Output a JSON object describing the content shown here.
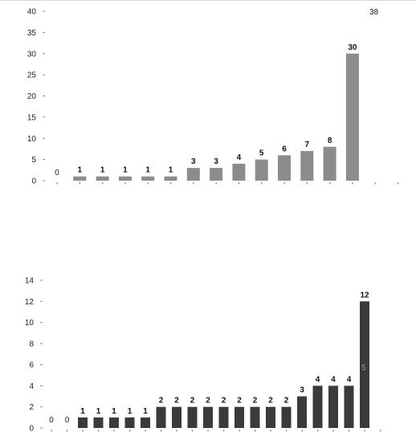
{
  "chart_data": [
    {
      "type": "bar",
      "ylim": [
        0,
        40
      ],
      "yticks": [
        "0",
        "5",
        "10",
        "15",
        "20",
        "25",
        "30",
        "35",
        "40"
      ],
      "color": "#8c8c8c",
      "values": [
        0,
        1,
        1,
        1,
        1,
        1,
        3,
        3,
        4,
        5,
        6,
        7,
        8,
        30
      ],
      "data_labels": [
        "0",
        "1",
        "1",
        "1",
        "1",
        "1",
        "3",
        "3",
        "4",
        "5",
        "6",
        "7",
        "8",
        "30"
      ],
      "corner_note": "38"
    },
    {
      "type": "bar",
      "ylim": [
        0,
        14
      ],
      "yticks": [
        "0",
        "2",
        "4",
        "6",
        "8",
        "10",
        "12",
        "14"
      ],
      "color": "#3a3a3a",
      "values": [
        0,
        0,
        1,
        1,
        1,
        1,
        1,
        2,
        2,
        2,
        2,
        2,
        2,
        2,
        2,
        2,
        3,
        4,
        4,
        4,
        12
      ],
      "data_labels": [
        "0",
        "0",
        "1",
        "1",
        "1",
        "1",
        "1",
        "2",
        "2",
        "2",
        "2",
        "2",
        "2",
        "2",
        "2",
        "2",
        "3",
        "4",
        "4",
        "4",
        "12"
      ],
      "side_note": "5"
    }
  ]
}
